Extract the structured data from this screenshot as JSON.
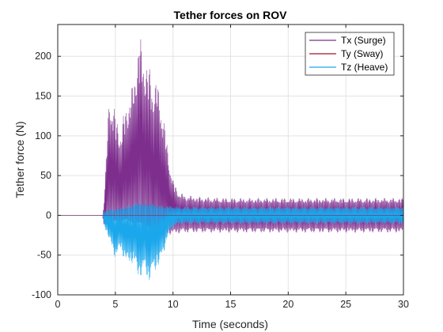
{
  "chart_data": {
    "type": "line",
    "title": "Tether forces on ROV",
    "xlabel": "Time (seconds)",
    "ylabel": "Tether force (N)",
    "xlim": [
      0,
      30
    ],
    "ylim": [
      -100,
      240
    ],
    "xticks": [
      0,
      5,
      10,
      15,
      20,
      25,
      30
    ],
    "yticks": [
      -100,
      -50,
      0,
      50,
      100,
      150,
      200
    ],
    "grid": true,
    "legend_position": "top-right",
    "series": [
      {
        "name": "Tx (Surge)",
        "color": "#7E2F8E",
        "envelope_x": [
          0,
          3.9,
          4.0,
          4.5,
          5.0,
          5.5,
          6.0,
          6.5,
          7.0,
          7.5,
          8.0,
          8.5,
          9.0,
          9.5,
          10.0,
          10.5,
          11.0,
          12.0,
          13.0,
          15.0,
          20.0,
          25.0,
          30.0
        ],
        "upper": [
          0,
          0,
          15,
          165,
          130,
          110,
          150,
          165,
          230,
          210,
          185,
          175,
          150,
          90,
          45,
          30,
          26,
          24,
          23,
          22,
          22,
          22,
          22
        ],
        "lower": [
          0,
          0,
          -15,
          -10,
          -8,
          -10,
          -5,
          -12,
          -10,
          -15,
          -20,
          -25,
          -28,
          -25,
          -24,
          -23,
          -22,
          -22,
          -22,
          -22,
          -22,
          -22,
          -22
        ]
      },
      {
        "name": "Ty (Sway)",
        "color": "#A2142F",
        "envelope_x": [
          0,
          4.0,
          30.0
        ],
        "upper": [
          0,
          0,
          0
        ],
        "lower": [
          0,
          0,
          0
        ]
      },
      {
        "name": "Tz (Heave)",
        "color": "#1AA7EC",
        "envelope_x": [
          0,
          3.9,
          4.0,
          4.5,
          5.0,
          5.5,
          6.0,
          6.5,
          7.0,
          7.5,
          8.0,
          8.5,
          9.0,
          9.5,
          10.0,
          10.5,
          11.0,
          12.0,
          13.0,
          15.0,
          20.0,
          25.0,
          30.0
        ],
        "upper": [
          0,
          0,
          5,
          8,
          8,
          10,
          12,
          14,
          18,
          15,
          16,
          14,
          12,
          12,
          12,
          11,
          11,
          11,
          11,
          11,
          11,
          11,
          11
        ],
        "lower": [
          0,
          0,
          -10,
          -35,
          -55,
          -45,
          -65,
          -60,
          -80,
          -75,
          -85,
          -70,
          -60,
          -30,
          -15,
          -12,
          -11,
          -11,
          -11,
          -11,
          -11,
          -11,
          -11
        ]
      }
    ]
  }
}
